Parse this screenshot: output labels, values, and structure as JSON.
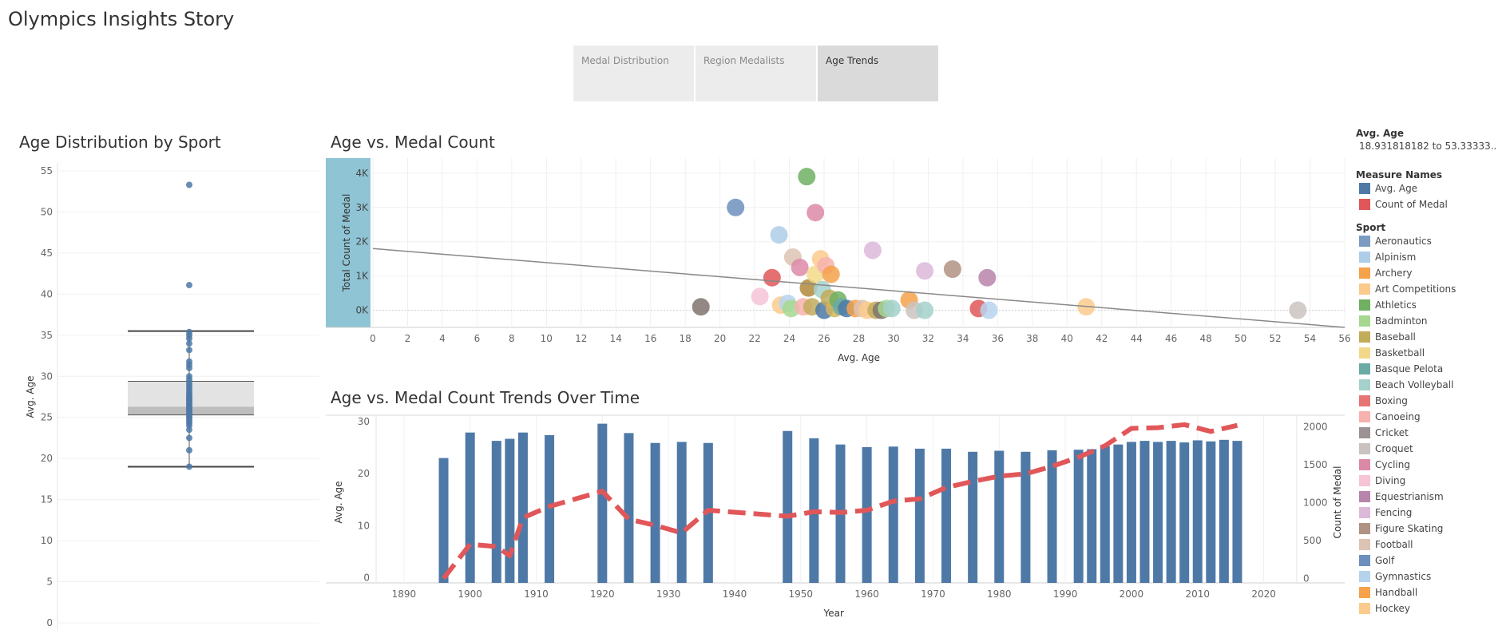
{
  "story": {
    "title": "Olympics Insights Story",
    "tabs": [
      {
        "label": "Medal Distribution",
        "active": false
      },
      {
        "label": "Region Medalists",
        "active": false
      },
      {
        "label": "Age Trends",
        "active": true
      }
    ]
  },
  "sheets": {
    "box": {
      "title": "Age Distribution by Sport"
    },
    "scatter": {
      "title": "Age vs. Medal Count"
    },
    "combo": {
      "title": "Age vs. Medal Count Trends Over Time"
    }
  },
  "legend": {
    "avg_age_title": "Avg. Age",
    "avg_age_range": "18.931818182 to 53.33333..",
    "measure_title": "Measure Names",
    "measures": [
      {
        "label": "Avg. Age",
        "color": "#4e79a7"
      },
      {
        "label": "Count of Medal",
        "color": "#e15759"
      }
    ],
    "sport_title": "Sport",
    "sports": [
      {
        "label": "Aeronautics",
        "color": "#7b9bc1"
      },
      {
        "label": "Alpinism",
        "color": "#aecde8"
      },
      {
        "label": "Archery",
        "color": "#f5a24b"
      },
      {
        "label": "Art Competitions",
        "color": "#fbcb8d"
      },
      {
        "label": "Athletics",
        "color": "#6fb061"
      },
      {
        "label": "Badminton",
        "color": "#a6d88f"
      },
      {
        "label": "Baseball",
        "color": "#c2ac5a"
      },
      {
        "label": "Basketball",
        "color": "#f2d98a"
      },
      {
        "label": "Basque Pelota",
        "color": "#6aaba6"
      },
      {
        "label": "Beach Volleyball",
        "color": "#a5d1cc"
      },
      {
        "label": "Boxing",
        "color": "#e87575"
      },
      {
        "label": "Canoeing",
        "color": "#f7b1ae"
      },
      {
        "label": "Cricket",
        "color": "#9c9293"
      },
      {
        "label": "Croquet",
        "color": "#cbc3c0"
      },
      {
        "label": "Cycling",
        "color": "#dc89a8"
      },
      {
        "label": "Diving",
        "color": "#f6c3d7"
      },
      {
        "label": "Equestrianism",
        "color": "#b884ac"
      },
      {
        "label": "Fencing",
        "color": "#ddb9d9"
      },
      {
        "label": "Figure Skating",
        "color": "#b09282"
      },
      {
        "label": "Football",
        "color": "#dcc3b3"
      },
      {
        "label": "Golf",
        "color": "#6d8fbd"
      },
      {
        "label": "Gymnastics",
        "color": "#b6d3ee"
      },
      {
        "label": "Handball",
        "color": "#f5a24b"
      },
      {
        "label": "Hockey",
        "color": "#fbcb8d"
      }
    ]
  },
  "chart_data": [
    {
      "type": "box",
      "title": "Age Distribution by Sport",
      "xlabel": "",
      "ylabel": "Avg. Age",
      "ylim": [
        0,
        55
      ],
      "yticks": [
        0,
        5,
        10,
        15,
        20,
        25,
        30,
        35,
        40,
        45,
        50,
        55
      ],
      "box": {
        "min": 19.0,
        "q1": 25.3,
        "median": 26.3,
        "q3": 29.4,
        "max": 35.5
      },
      "points": [
        53.3,
        41.1,
        35.4,
        35.0,
        34.6,
        34.0,
        33.2,
        31.8,
        31.4,
        31.0,
        30.0,
        29.6,
        29.2,
        28.9,
        28.6,
        28.3,
        28.0,
        27.7,
        27.5,
        27.3,
        27.1,
        26.9,
        26.7,
        26.5,
        26.3,
        26.1,
        25.9,
        25.7,
        25.5,
        25.3,
        25.1,
        24.9,
        24.6,
        24.3,
        24.0,
        23.5,
        22.5,
        21.0,
        19.0
      ]
    },
    {
      "type": "scatter",
      "title": "Age vs. Medal Count",
      "xlabel": "Avg. Age",
      "ylabel": "Total Count of Medal",
      "xlim": [
        0,
        56
      ],
      "ylim": [
        -500,
        4300
      ],
      "xticks": [
        0,
        2,
        4,
        6,
        8,
        10,
        12,
        14,
        16,
        18,
        20,
        22,
        24,
        26,
        28,
        30,
        32,
        34,
        36,
        38,
        40,
        42,
        44,
        46,
        48,
        50,
        52,
        54,
        56
      ],
      "yticks": [
        0,
        1000,
        2000,
        3000,
        4000
      ],
      "ytick_labels": [
        "0K",
        "1K",
        "2K",
        "3K",
        "4K"
      ],
      "trend_line": {
        "x": [
          0,
          56
        ],
        "y": [
          1800,
          -500
        ]
      },
      "points": [
        {
          "x": 18.9,
          "y": 100,
          "color": "#7f7470"
        },
        {
          "x": 20.9,
          "y": 3000,
          "color": "#6d8fbd"
        },
        {
          "x": 22.3,
          "y": 400,
          "color": "#f6c3d7"
        },
        {
          "x": 23.0,
          "y": 950,
          "color": "#e15759"
        },
        {
          "x": 23.4,
          "y": 2200,
          "color": "#aecde8"
        },
        {
          "x": 23.5,
          "y": 150,
          "color": "#fbcb8d"
        },
        {
          "x": 23.9,
          "y": 200,
          "color": "#b6d3ee"
        },
        {
          "x": 24.1,
          "y": 50,
          "color": "#a6d88f"
        },
        {
          "x": 24.2,
          "y": 1550,
          "color": "#dcc3b3"
        },
        {
          "x": 24.6,
          "y": 1250,
          "color": "#dc89a8"
        },
        {
          "x": 24.8,
          "y": 100,
          "color": "#f7b1ae"
        },
        {
          "x": 25.0,
          "y": 3900,
          "color": "#6fb061"
        },
        {
          "x": 25.1,
          "y": 650,
          "color": "#b08a3c"
        },
        {
          "x": 25.3,
          "y": 100,
          "color": "#c2ac5a"
        },
        {
          "x": 25.5,
          "y": 2850,
          "color": "#dc89a8"
        },
        {
          "x": 25.5,
          "y": 1050,
          "color": "#f2d98a"
        },
        {
          "x": 25.8,
          "y": 1500,
          "color": "#fbcb8d"
        },
        {
          "x": 25.9,
          "y": 600,
          "color": "#a5d1cc"
        },
        {
          "x": 26.0,
          "y": 0,
          "color": "#4e79a7"
        },
        {
          "x": 26.1,
          "y": 1300,
          "color": "#f7b1ae"
        },
        {
          "x": 26.3,
          "y": 350,
          "color": "#c2ac5a"
        },
        {
          "x": 26.4,
          "y": 1050,
          "color": "#f5a24b"
        },
        {
          "x": 26.6,
          "y": 50,
          "color": "#d5b65a"
        },
        {
          "x": 26.8,
          "y": 300,
          "color": "#6fb061"
        },
        {
          "x": 27.0,
          "y": 100,
          "color": "#6aaba6"
        },
        {
          "x": 27.3,
          "y": 50,
          "color": "#4e79a7"
        },
        {
          "x": 27.8,
          "y": 50,
          "color": "#f5a24b"
        },
        {
          "x": 28.2,
          "y": 50,
          "color": "#dcc3b3"
        },
        {
          "x": 28.5,
          "y": 0,
          "color": "#fbcb8d"
        },
        {
          "x": 28.8,
          "y": 1750,
          "color": "#ddb9d9"
        },
        {
          "x": 29.0,
          "y": 0,
          "color": "#c2ac5a"
        },
        {
          "x": 29.3,
          "y": 0,
          "color": "#7f7470"
        },
        {
          "x": 29.6,
          "y": 50,
          "color": "#a6d88f"
        },
        {
          "x": 29.9,
          "y": 50,
          "color": "#a5d1cc"
        },
        {
          "x": 30.9,
          "y": 300,
          "color": "#f5a24b"
        },
        {
          "x": 31.2,
          "y": 0,
          "color": "#cbc3c0"
        },
        {
          "x": 31.8,
          "y": 1150,
          "color": "#ddb9d9"
        },
        {
          "x": 31.8,
          "y": 0,
          "color": "#a5d1cc"
        },
        {
          "x": 33.4,
          "y": 1200,
          "color": "#b09282"
        },
        {
          "x": 34.9,
          "y": 50,
          "color": "#e15759"
        },
        {
          "x": 35.4,
          "y": 950,
          "color": "#b884ac"
        },
        {
          "x": 35.5,
          "y": 0,
          "color": "#b6d3ee"
        },
        {
          "x": 41.1,
          "y": 100,
          "color": "#fbcb8d"
        },
        {
          "x": 53.3,
          "y": 0,
          "color": "#cbc3c0"
        }
      ]
    },
    {
      "type": "bar+line",
      "title": "Age vs. Medal Count Trends Over Time",
      "xlabel": "Year",
      "ylabel": "Avg. Age",
      "y2label": "Count of Medal",
      "xlim": [
        1887,
        2025
      ],
      "xticks": [
        1890,
        1900,
        1910,
        1920,
        1930,
        1940,
        1950,
        1960,
        1970,
        1980,
        1990,
        2000,
        2010,
        2020
      ],
      "ylim": [
        -1,
        30
      ],
      "yticks": [
        0,
        10,
        20,
        30
      ],
      "y2lim": [
        -60,
        2070
      ],
      "y2ticks": [
        0,
        500,
        1000,
        1500,
        2000
      ],
      "series": [
        {
          "name": "Avg. Age",
          "kind": "bar",
          "color": "#4e79a7",
          "x": [
            1896,
            1900,
            1904,
            1906,
            1908,
            1912,
            1920,
            1924,
            1928,
            1932,
            1936,
            1948,
            1952,
            1956,
            1960,
            1964,
            1968,
            1972,
            1976,
            1980,
            1984,
            1988,
            1992,
            1994,
            1996,
            1998,
            2000,
            2002,
            2004,
            2006,
            2008,
            2010,
            2012,
            2014,
            2016
          ],
          "values": [
            23.0,
            27.9,
            26.3,
            26.7,
            27.9,
            27.4,
            29.6,
            27.8,
            25.9,
            26.1,
            25.9,
            28.2,
            26.8,
            25.6,
            25.1,
            25.2,
            24.8,
            24.8,
            24.2,
            24.4,
            24.2,
            24.5,
            24.6,
            24.7,
            25.3,
            25.6,
            26.1,
            26.3,
            26.1,
            26.3,
            26.0,
            26.4,
            26.2,
            26.5,
            26.3
          ]
        },
        {
          "name": "Count of Medal",
          "kind": "line",
          "color": "#e15759",
          "x": [
            1896,
            1900,
            1904,
            1906,
            1908,
            1912,
            1920,
            1924,
            1928,
            1932,
            1936,
            1948,
            1952,
            1956,
            1960,
            1964,
            1968,
            1972,
            1976,
            1980,
            1984,
            1988,
            1992,
            1996,
            2000,
            2004,
            2008,
            2012,
            2016
          ],
          "values": [
            0,
            450,
            420,
            300,
            800,
            950,
            1150,
            780,
            700,
            600,
            900,
            820,
            880,
            870,
            900,
            1020,
            1050,
            1200,
            1280,
            1350,
            1380,
            1480,
            1600,
            1750,
            1980,
            1990,
            2030,
            1940,
            2020
          ]
        }
      ]
    }
  ]
}
